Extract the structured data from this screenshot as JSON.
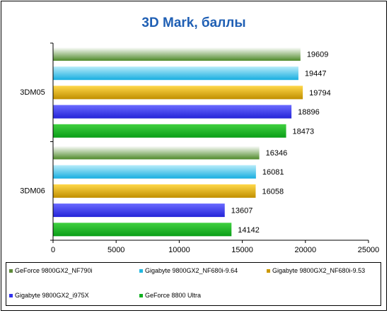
{
  "chart_data": {
    "type": "bar",
    "orientation": "horizontal",
    "title": "3D Mark, баллы",
    "categories": [
      "3DM05",
      "3DM06"
    ],
    "series": [
      {
        "name": "GeForce 9800GX2_NF790i",
        "values": [
          19609,
          16346
        ],
        "color": "#5e8a3a",
        "gradient": [
          "#ffffff",
          "#4f8a2a"
        ]
      },
      {
        "name": "Gigabyte 9800GX2_NF680i-9.64",
        "values": [
          19447,
          16081
        ],
        "color": "#22b8e0",
        "gradient": [
          "#b8ecfa",
          "#18aee0"
        ]
      },
      {
        "name": "Gigabyte 9800GX2_NF680i-9.53",
        "values": [
          19794,
          16058
        ],
        "color": "#cc9900",
        "gradient": [
          "#ffd84a",
          "#c08f00"
        ]
      },
      {
        "name": "Gigabyte 9800GX2_i975X",
        "values": [
          18896,
          13607
        ],
        "color": "#3333ee",
        "gradient": [
          "#6a6aff",
          "#2424d8"
        ]
      },
      {
        "name": "GeForce 8800 Ultra",
        "values": [
          18473,
          14142
        ],
        "color": "#10b020",
        "gradient": [
          "#40d040",
          "#0a9e18"
        ]
      }
    ],
    "xlim": [
      0,
      25000
    ],
    "xticks": [
      0,
      5000,
      10000,
      15000,
      20000,
      25000
    ],
    "grid": false,
    "legend_position": "bottom",
    "data_labels": true
  }
}
